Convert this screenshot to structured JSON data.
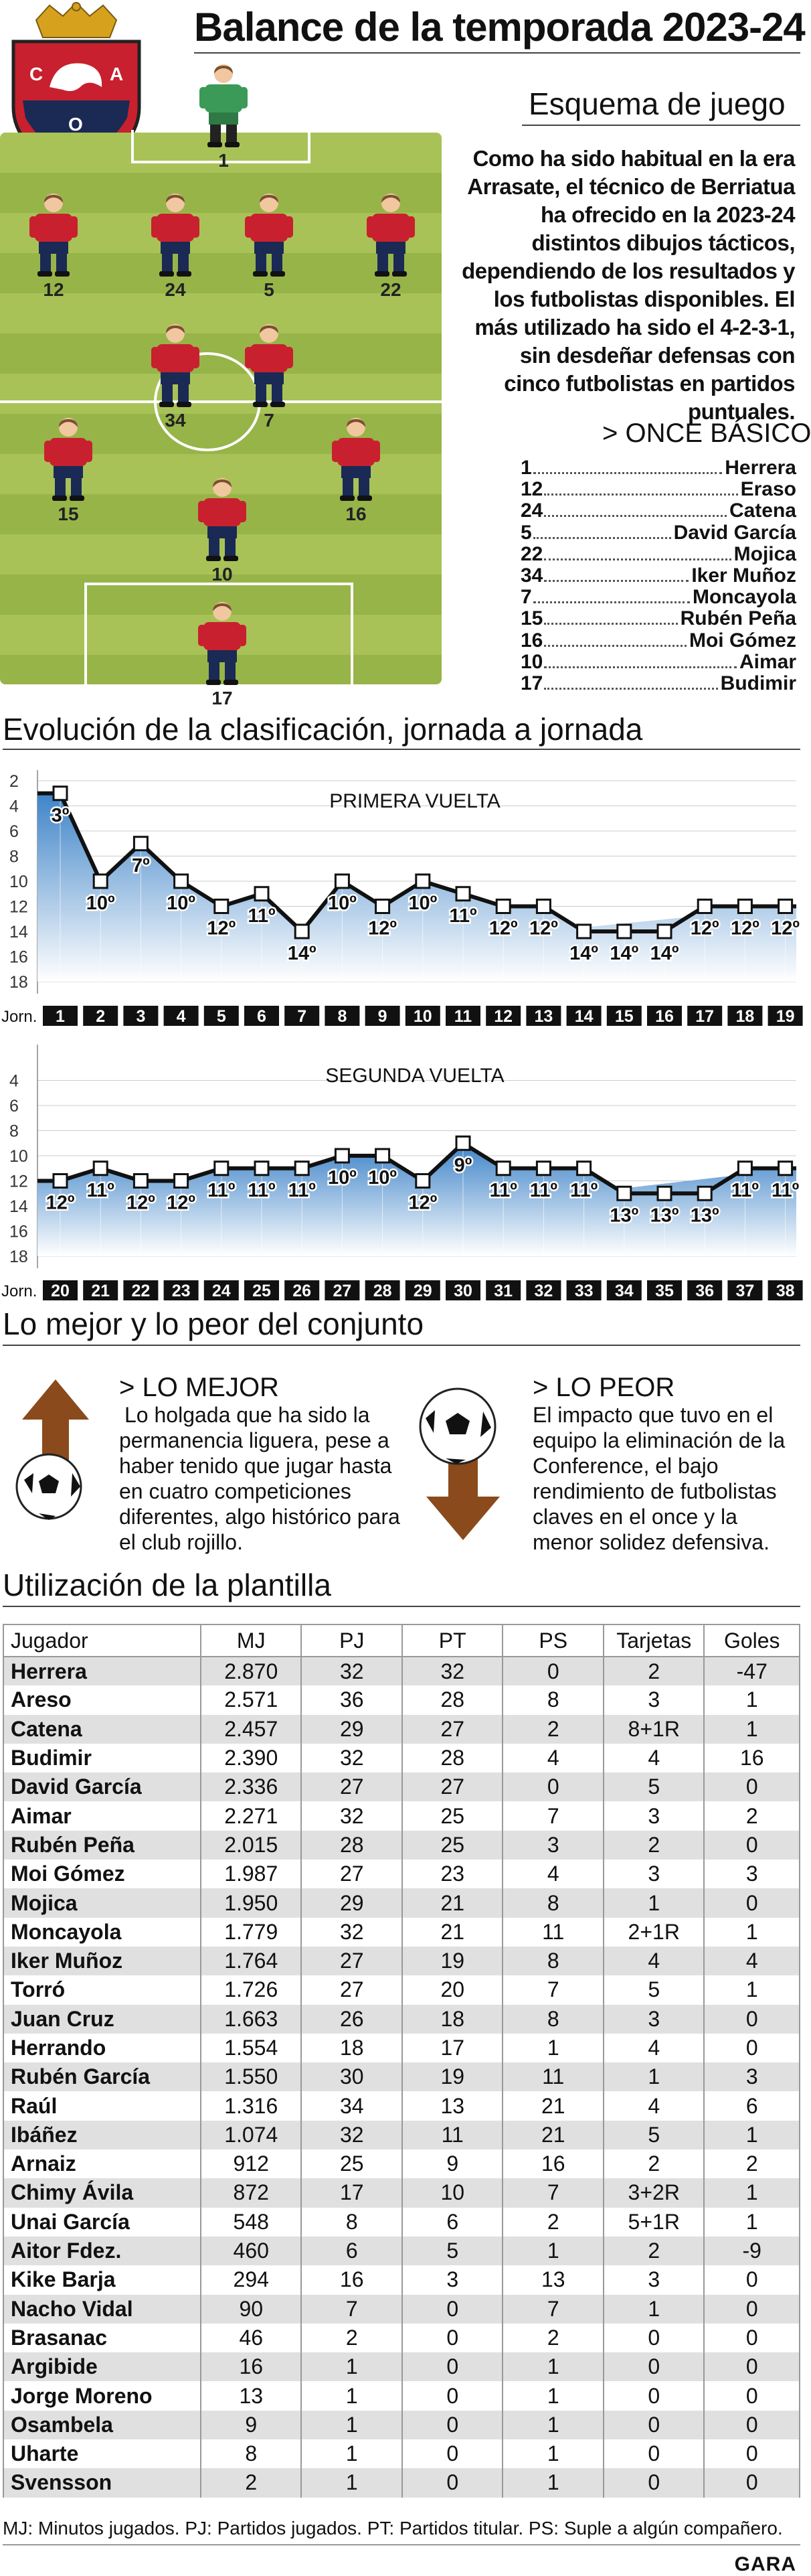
{
  "header": {
    "title": "Balance de la temporada 2023-24",
    "crest_letters": [
      "C",
      "A",
      "O"
    ]
  },
  "scheme": {
    "title": "Esquema de juego",
    "intro": "Como ha sido habitual en la era Arrasate, el técnico de Berriatua ha ofrecido en la 2023-24 distintos dibujos tácticos, dependiendo de los resultados y los futbolistas disponibles. El más utilizado ha sido el 4-2-3-1, sin desdeñar defensas con cinco futbolistas en partidos puntuales.",
    "pitch_numbers": [
      "1",
      "12",
      "24",
      "5",
      "22",
      "34",
      "7",
      "15",
      "16",
      "10",
      "17"
    ],
    "once_title": "> ONCE BÁSICO",
    "once": [
      {
        "n": "1",
        "name": "Herrera"
      },
      {
        "n": "12",
        "name": "Eraso"
      },
      {
        "n": "24",
        "name": "Catena"
      },
      {
        "n": "5",
        "name": "David García"
      },
      {
        "n": "22",
        "name": "Mojica"
      },
      {
        "n": "34",
        "name": "Iker Muñoz"
      },
      {
        "n": "7",
        "name": "Moncayola"
      },
      {
        "n": "15",
        "name": "Rubén Peña"
      },
      {
        "n": "16",
        "name": "Moi Gómez"
      },
      {
        "n": "10",
        "name": "Aimar"
      },
      {
        "n": "17",
        "name": "Budimir"
      }
    ]
  },
  "evolution": {
    "title": "Evolución de la clasificación, jornada a jornada",
    "jorn_label": "Jorn."
  },
  "chart_data": [
    {
      "type": "area",
      "title": "PRIMERA VUELTA",
      "x": [
        1,
        2,
        3,
        4,
        5,
        6,
        7,
        8,
        9,
        10,
        11,
        12,
        13,
        14,
        15,
        16,
        17,
        18,
        19
      ],
      "values": [
        3,
        10,
        7,
        10,
        12,
        11,
        14,
        10,
        12,
        10,
        11,
        12,
        12,
        14,
        14,
        14,
        12,
        12,
        12
      ],
      "labels": [
        "3º",
        "10º",
        "7º",
        "10º",
        "12º",
        "11º",
        "14º",
        "10º",
        "12º",
        "10º",
        "11º",
        "12º",
        "12º",
        "14º",
        "14º",
        "14º",
        "12º",
        "12º",
        "12º"
      ],
      "label_shown": [
        true,
        true,
        true,
        true,
        true,
        true,
        true,
        true,
        true,
        true,
        true,
        true,
        true,
        true,
        true,
        true,
        true,
        true,
        true
      ],
      "yticks": [
        "2",
        "4",
        "6",
        "8",
        "10",
        "12",
        "14",
        "16",
        "18"
      ],
      "ylim": [
        2,
        18
      ],
      "y_inverted": true
    },
    {
      "type": "area",
      "title": "SEGUNDA VUELTA",
      "x": [
        20,
        21,
        22,
        23,
        24,
        25,
        26,
        27,
        28,
        29,
        30,
        31,
        32,
        33,
        34,
        35,
        36,
        37,
        38
      ],
      "values": [
        12,
        11,
        12,
        12,
        11,
        11,
        11,
        10,
        10,
        12,
        9,
        11,
        11,
        11,
        13,
        13,
        13,
        11,
        11
      ],
      "labels": [
        "12º",
        "11º",
        "12º",
        "12º",
        "11º",
        "11º",
        "11º",
        "10º",
        "10º",
        "12º",
        "9º",
        "11º",
        "11º",
        "11º",
        "13º",
        "13º",
        "13º",
        "11º",
        "11º"
      ],
      "label_shown": [
        true,
        true,
        true,
        true,
        true,
        true,
        true,
        true,
        true,
        true,
        true,
        true,
        true,
        true,
        true,
        true,
        true,
        true,
        true
      ],
      "yticks": [
        "4",
        "6",
        "8",
        "10",
        "12",
        "14",
        "16",
        "18"
      ],
      "ylim": [
        4,
        18
      ],
      "y_inverted": true
    }
  ],
  "best_worst": {
    "title": "Lo mejor y lo peor del conjunto",
    "best_title": "> LO MEJOR",
    "best_text": "Lo holgada que ha sido la permanencia liguera, pese a haber tenido que jugar hasta en cuatro competiciones diferentes, algo histórico para el club rojillo.",
    "worst_title": "> LO PEOR",
    "worst_text": "El impacto que tuvo en el equipo la eliminación de la Conference, el bajo rendimiento de futbolistas claves en el once y la menor solidez defensiva."
  },
  "squad": {
    "title": "Utilización de la plantilla",
    "columns": [
      "Jugador",
      "MJ",
      "PJ",
      "PT",
      "PS",
      "Tarjetas",
      "Goles"
    ],
    "rows": [
      [
        "Herrera",
        "2.870",
        "32",
        "32",
        "0",
        "2",
        "-47"
      ],
      [
        "Areso",
        "2.571",
        "36",
        "28",
        "8",
        "3",
        "1"
      ],
      [
        "Catena",
        "2.457",
        "29",
        "27",
        "2",
        "8+1R",
        "1"
      ],
      [
        "Budimir",
        "2.390",
        "32",
        "28",
        "4",
        "4",
        "16"
      ],
      [
        "David García",
        "2.336",
        "27",
        "27",
        "0",
        "5",
        "0"
      ],
      [
        "Aimar",
        "2.271",
        "32",
        "25",
        "7",
        "3",
        "2"
      ],
      [
        "Rubén Peña",
        "2.015",
        "28",
        "25",
        "3",
        "2",
        "0"
      ],
      [
        "Moi Gómez",
        "1.987",
        "27",
        "23",
        "4",
        "3",
        "3"
      ],
      [
        "Mojica",
        "1.950",
        "29",
        "21",
        "8",
        "1",
        "0"
      ],
      [
        "Moncayola",
        "1.779",
        "32",
        "21",
        "11",
        "2+1R",
        "1"
      ],
      [
        "Iker Muñoz",
        "1.764",
        "27",
        "19",
        "8",
        "4",
        "4"
      ],
      [
        "Torró",
        "1.726",
        "27",
        "20",
        "7",
        "5",
        "1"
      ],
      [
        "Juan Cruz",
        "1.663",
        "26",
        "18",
        "8",
        "3",
        "0"
      ],
      [
        "Herrando",
        "1.554",
        "18",
        "17",
        "1",
        "4",
        "0"
      ],
      [
        "Rubén García",
        "1.550",
        "30",
        "19",
        "11",
        "1",
        "3"
      ],
      [
        "Raúl",
        "1.316",
        "34",
        "13",
        "21",
        "4",
        "6"
      ],
      [
        "Ibáñez",
        "1.074",
        "32",
        "11",
        "21",
        "5",
        "1"
      ],
      [
        "Arnaiz",
        "912",
        "25",
        "9",
        "16",
        "2",
        "2"
      ],
      [
        "Chimy Ávila",
        "872",
        "17",
        "10",
        "7",
        "3+2R",
        "1"
      ],
      [
        "Unai García",
        "548",
        "8",
        "6",
        "2",
        "5+1R",
        "1"
      ],
      [
        "Aitor Fdez.",
        "460",
        "6",
        "5",
        "1",
        "2",
        "-9"
      ],
      [
        "Kike Barja",
        "294",
        "16",
        "3",
        "13",
        "3",
        "0"
      ],
      [
        "Nacho Vidal",
        "90",
        "7",
        "0",
        "7",
        "1",
        "0"
      ],
      [
        "Brasanac",
        "46",
        "2",
        "0",
        "2",
        "0",
        "0"
      ],
      [
        "Argibide",
        "16",
        "1",
        "0",
        "1",
        "0",
        "0"
      ],
      [
        "Jorge Moreno",
        "13",
        "1",
        "0",
        "1",
        "0",
        "0"
      ],
      [
        "Osambela",
        "9",
        "1",
        "0",
        "1",
        "0",
        "0"
      ],
      [
        "Uharte",
        "8",
        "1",
        "0",
        "1",
        "0",
        "0"
      ],
      [
        "Svensson",
        "2",
        "1",
        "0",
        "1",
        "0",
        "0"
      ]
    ],
    "footnote": "MJ: Minutos jugados. PJ: Partidos jugados. PT: Partidos titular. PS: Suple a algún compañero."
  },
  "source": "GARA",
  "colors": {
    "red": "#c8202e",
    "navy": "#1a2a55",
    "pitch": "#a8c258",
    "area": "#4a8fd0",
    "gk": "#3b9a57",
    "arrow": "#8a4a1c"
  }
}
